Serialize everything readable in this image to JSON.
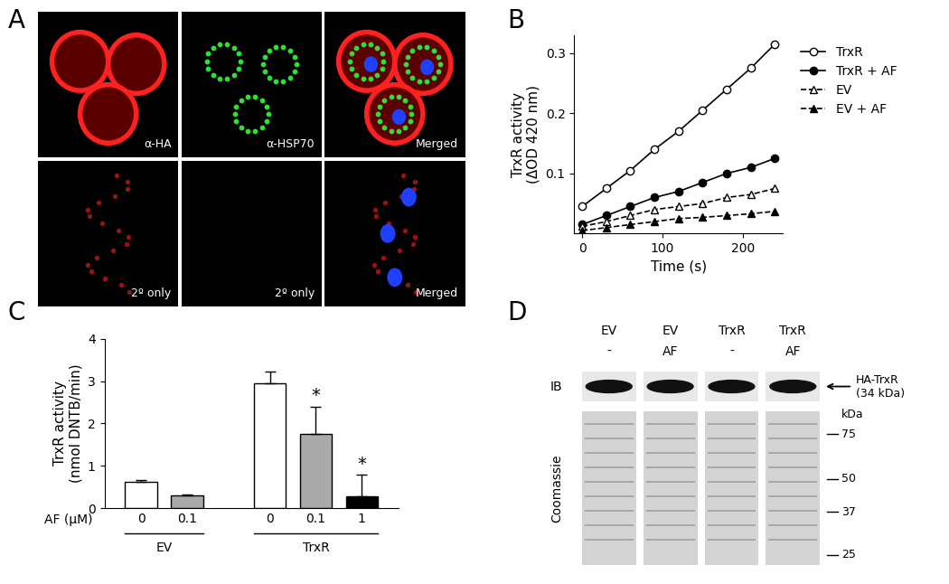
{
  "panel_A": {
    "label": "A",
    "rows": [
      [
        "α-HA",
        "α-HSP70",
        "Merged"
      ],
      [
        "2º only",
        "2º only",
        "Merged"
      ]
    ]
  },
  "chart_data": [
    {
      "label": "B",
      "type": "line",
      "x_label": "Time (s)",
      "y_label": "TrxR activity\n(ΔOD 420 nm)",
      "x": [
        0,
        30,
        60,
        90,
        120,
        150,
        180,
        210,
        240
      ],
      "xlim": [
        -10,
        250
      ],
      "xticks": [
        0,
        100,
        200
      ],
      "ylim": [
        0,
        0.33
      ],
      "yticks": [
        0.1,
        0.2,
        0.3
      ],
      "legend": "upper left",
      "series": [
        {
          "name": "TrxR",
          "color": "#000000",
          "marker": "open_circle",
          "line_style": "solid",
          "values": [
            0.045,
            0.075,
            0.105,
            0.14,
            0.17,
            0.205,
            0.24,
            0.275,
            0.315
          ]
        },
        {
          "name": "TrxR + AF",
          "color": "#000000",
          "marker": "filled_circle",
          "line_style": "solid",
          "values": [
            0.015,
            0.03,
            0.045,
            0.06,
            0.07,
            0.085,
            0.1,
            0.11,
            0.125
          ]
        },
        {
          "name": "EV",
          "color": "#000000",
          "marker": "open_triangle",
          "line_style": "dashed",
          "values": [
            0.012,
            0.02,
            0.03,
            0.04,
            0.045,
            0.05,
            0.06,
            0.065,
            0.075
          ]
        },
        {
          "name": "EV + AF",
          "color": "#000000",
          "marker": "filled_triangle",
          "line_style": "dashed",
          "values": [
            0.005,
            0.01,
            0.015,
            0.02,
            0.025,
            0.027,
            0.03,
            0.033,
            0.037
          ]
        }
      ]
    },
    {
      "label": "C",
      "type": "bar",
      "y_label": "TrxR activity\n(nmol DNTB/min)",
      "x_label": "AF (µM)",
      "categories": [
        "0",
        "0.1",
        "0",
        "0.1",
        "1"
      ],
      "groups": [
        "EV",
        "EV",
        "TrxR",
        "TrxR",
        "TrxR"
      ],
      "values": [
        0.62,
        0.3,
        2.95,
        1.75,
        0.28
      ],
      "errors": [
        0.05,
        0.02,
        0.27,
        0.65,
        0.5
      ],
      "colors": [
        "#ffffff",
        "#aaaaaa",
        "#ffffff",
        "#aaaaaa",
        "#000000"
      ],
      "significance": [
        null,
        null,
        null,
        "*",
        "*"
      ],
      "ylim": [
        0,
        4
      ],
      "yticks": [
        0,
        1,
        2,
        3,
        4
      ]
    }
  ],
  "panel_D": {
    "label": "D",
    "lanes": [
      {
        "top": "EV",
        "bottom": "-"
      },
      {
        "top": "EV",
        "bottom": "AF"
      },
      {
        "top": "TrxR",
        "bottom": "-"
      },
      {
        "top": "TrxR",
        "bottom": "AF"
      }
    ],
    "rows": [
      "IB",
      "Coomassie"
    ],
    "band_label": "HA-TrxR\n(34 kDa)",
    "marker_unit": "kDa",
    "markers": [
      75,
      50,
      37,
      25
    ]
  }
}
